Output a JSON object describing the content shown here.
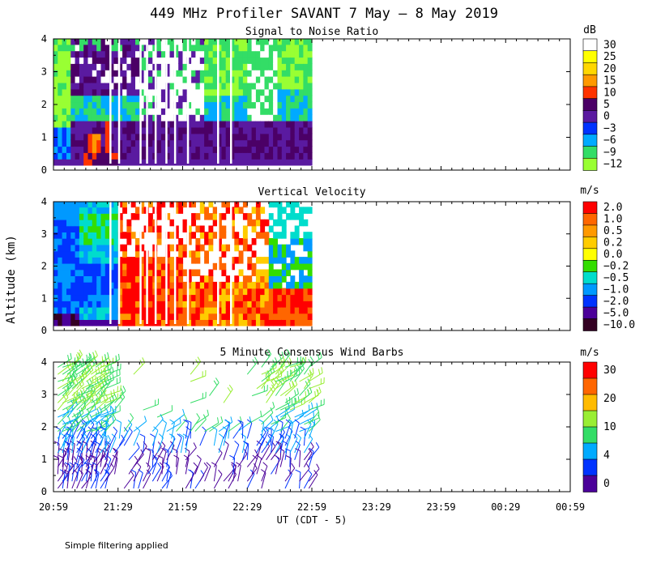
{
  "chart_data": {
    "type": "heatmap",
    "title": "449 MHz Profiler SAVANT  7 May –  8 May 2019",
    "xlabel": "UT  (CDT - 5)",
    "ylabel": "Altitude (km)",
    "x_ticks": [
      "20:59",
      "21:29",
      "21:59",
      "22:29",
      "22:59",
      "23:29",
      "23:59",
      "00:29",
      "00:59"
    ],
    "x_range_minutes": [
      0,
      240
    ],
    "data_end_minutes": 120,
    "ylim": [
      0,
      4
    ],
    "y_ticks": [
      "0",
      "1",
      "2",
      "3",
      "4"
    ],
    "panels": [
      {
        "title": "Signal to Noise Ratio",
        "unit": "dB",
        "levels": [
          "30",
          "25",
          "20",
          "15",
          "10",
          "5",
          "0",
          "−3",
          "−6",
          "−9",
          "−12"
        ],
        "colors": [
          "#ffffff",
          "#ffff00",
          "#ffd700",
          "#ff9900",
          "#ff3300",
          "#4b0066",
          "#5a1aa0",
          "#0033ff",
          "#00aaff",
          "#33dd66",
          "#99ff33"
        ],
        "display": "contour"
      },
      {
        "title": "Vertical Velocity",
        "unit": "m/s",
        "levels": [
          "2.0",
          "1.0",
          "0.5",
          "0.2",
          "0.0",
          "−0.2",
          "−0.5",
          "−1.0",
          "−2.0",
          "−5.0",
          "−10.0"
        ],
        "colors": [
          "#ff0000",
          "#ff6600",
          "#ff9900",
          "#ffcc00",
          "#ffff00",
          "#33dd00",
          "#00ddcc",
          "#0099ff",
          "#0033ff",
          "#4b0099",
          "#330022"
        ],
        "display": "contour"
      },
      {
        "title": "5 Minute Consensus Wind Barbs",
        "unit": "m/s",
        "levels": [
          "30",
          "20",
          "10",
          "4",
          "0"
        ],
        "colors": [
          "#ff0000",
          "#ff6600",
          "#ffbb00",
          "#99ee33",
          "#33dd66",
          "#00aaff",
          "#0033ff",
          "#4b0099"
        ],
        "display": "barbs"
      }
    ]
  },
  "footnote": "Simple filtering applied"
}
